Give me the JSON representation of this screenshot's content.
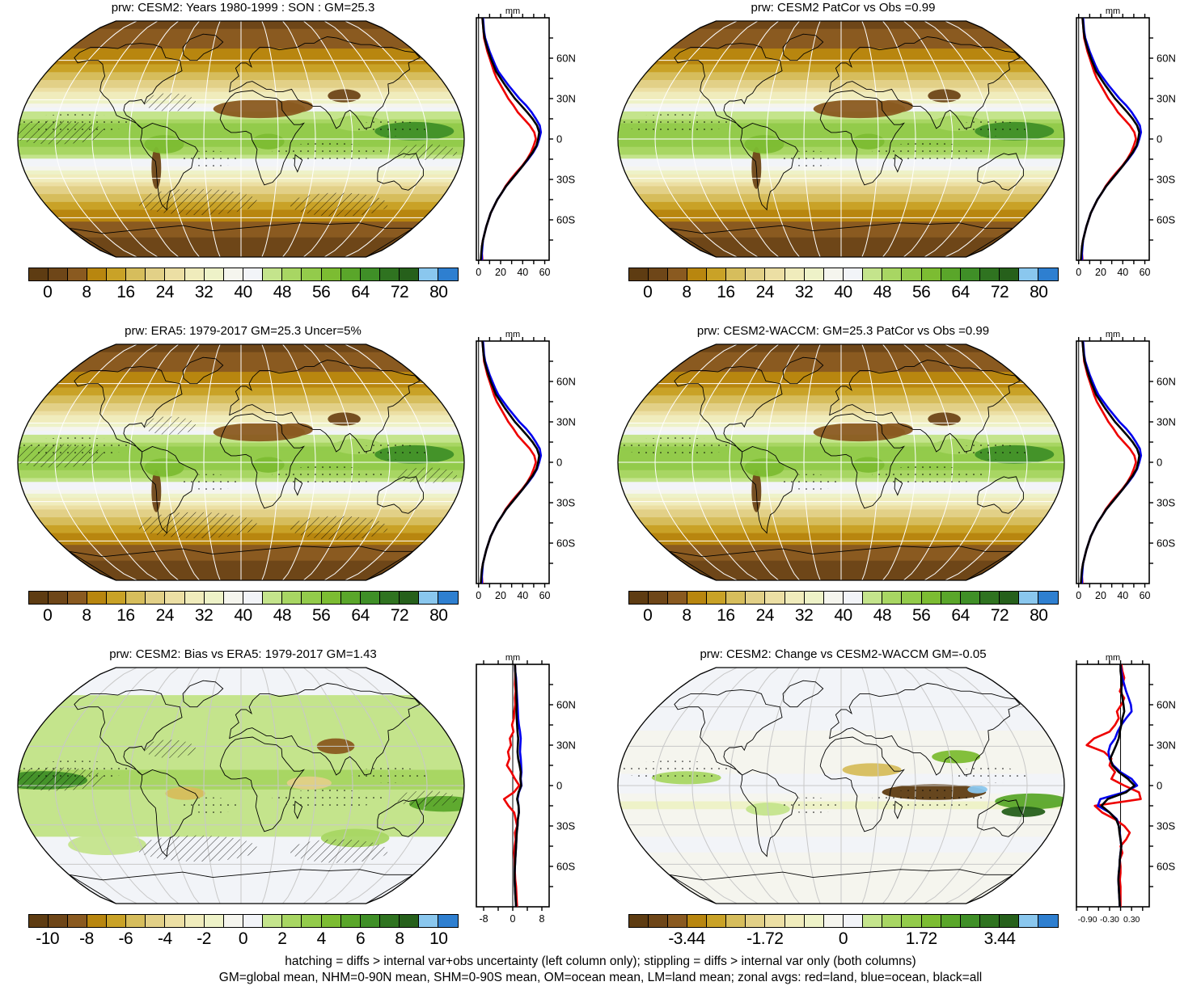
{
  "figure": {
    "caption_line1": "hatching = diffs > internal var+obs uncertainty (left column only); stippling = diffs > internal var only (both columns)",
    "caption_line2": "GM=global mean, NHM=0-90N mean, SHM=0-90S mean, OM=ocean mean, LM=land mean; zonal avgs: red=land, blue=ocean, black=all"
  },
  "colors": {
    "zonal_land_line": "#ee0000",
    "zonal_ocean_line": "#0000ee",
    "zonal_all_line": "#000000",
    "graticule_dark_maps": "#ffffff",
    "graticule_light_maps": "#c8c8c8",
    "colormap": [
      "#5e3c12",
      "#6e4618",
      "#8a5a20",
      "#b8860f",
      "#c9a227",
      "#d6bd5c",
      "#e2d087",
      "#ecdfa4",
      "#f0ecbc",
      "#eef2c8",
      "#f5f5ee",
      "#f2f4f8",
      "#c4e48c",
      "#a8d663",
      "#93cb4b",
      "#7cbc32",
      "#5aa62a",
      "#3f8f27",
      "#2f7320",
      "#26601b",
      "#8ac7ee",
      "#2e7fd0"
    ]
  },
  "chart_data": {
    "type": "heatmap",
    "description": "Six global maps of precipitable water (prw, mm) in Robinson-style projection, each with a zonal-mean side plot (red=land, blue=ocean, black=all) and a discrete colorbar.",
    "units": "mm",
    "lat_axis": {
      "minor_step": 15,
      "labels": [
        {
          "lat": 60,
          "t": "60N"
        },
        {
          "lat": 30,
          "t": "30N"
        },
        {
          "lat": 0,
          "t": "0"
        },
        {
          "lat": -30,
          "t": "30S"
        },
        {
          "lat": -60,
          "t": "60S"
        }
      ]
    },
    "shared_series": {
      "lats": [
        90,
        85,
        80,
        75,
        70,
        65,
        60,
        55,
        50,
        45,
        40,
        35,
        30,
        25,
        20,
        15,
        10,
        5,
        0,
        -5,
        -10,
        -15,
        -20,
        -25,
        -30,
        -35,
        -40,
        -45,
        -50,
        -55,
        -60,
        -65,
        -70,
        -75,
        -80,
        -85,
        -90
      ],
      "climo": {
        "all": [
          3.5,
          4,
          4.5,
          5.5,
          7,
          9,
          11,
          13.5,
          16,
          20,
          24,
          28.5,
          33,
          38.5,
          44,
          49,
          53,
          55,
          54,
          52.5,
          49,
          44.5,
          40,
          35,
          30,
          25,
          21,
          17,
          14,
          11,
          9,
          7,
          5.5,
          4,
          3,
          2.5,
          2
        ],
        "ocean": [
          4,
          4.5,
          5,
          6,
          8,
          10,
          12.5,
          15,
          18,
          22.5,
          27,
          32,
          37,
          43,
          48,
          52,
          55.5,
          56.5,
          55,
          53,
          49.5,
          45,
          40,
          35,
          30,
          25,
          21,
          17,
          14,
          11,
          9,
          7,
          5.5,
          4,
          3.5,
          3,
          3
        ],
        "land": [
          3.5,
          4,
          4.5,
          5,
          6.5,
          8,
          10,
          12,
          14,
          16.5,
          20,
          23.5,
          27,
          31.5,
          35.5,
          41,
          46.5,
          50.5,
          52,
          50,
          47.5,
          44,
          39.5,
          34,
          29,
          24.5,
          21,
          17,
          14,
          11,
          9,
          7,
          5.5,
          4,
          3,
          3,
          3.5
        ]
      },
      "bias": {
        "all": [
          0.6,
          0.7,
          0.8,
          0.9,
          1.0,
          1.0,
          1.1,
          1.0,
          1.1,
          1.2,
          1.3,
          1.5,
          1.4,
          1.3,
          1.5,
          1.9,
          2.2,
          2.1,
          2.3,
          1.6,
          1.2,
          1.6,
          1.7,
          1.4,
          1.3,
          1.1,
          1.0,
          0.9,
          0.8,
          0.7,
          0.6,
          0.5,
          0.5,
          0.6,
          0.7,
          0.8,
          0.9
        ],
        "ocean": [
          0.6,
          0.7,
          0.9,
          1.0,
          1.1,
          1.2,
          1.3,
          1.4,
          1.5,
          1.7,
          2.0,
          2.2,
          2.1,
          2.0,
          2.2,
          2.3,
          2.4,
          2.2,
          2.4,
          1.7,
          1.3,
          1.6,
          1.7,
          1.4,
          1.3,
          1.1,
          1.0,
          0.9,
          0.8,
          0.7,
          0.6,
          0.5,
          0.5,
          0.6,
          0.7,
          0.8,
          0.9
        ],
        "land": [
          0.6,
          0.7,
          0.7,
          0.6,
          0.8,
          0.6,
          0.7,
          0.4,
          0.3,
          -0.2,
          0.2,
          -0.8,
          -0.5,
          -1.3,
          -0.9,
          -1.6,
          -0.4,
          0.6,
          1.8,
          0.3,
          -2.4,
          -1.2,
          0.4,
          0.8,
          1.2,
          0.6,
          0.8,
          0.5,
          0.4,
          0.5,
          0.5,
          0.6,
          0.7,
          0.9,
          1.0,
          1.1,
          1.2
        ]
      },
      "change": {
        "all": [
          0,
          0,
          0.02,
          0.03,
          0.02,
          0.05,
          0.08,
          0.1,
          0.05,
          0.02,
          -0.02,
          -0.05,
          -0.12,
          -0.2,
          -0.28,
          -0.22,
          -0.05,
          0.2,
          0.38,
          0.15,
          -0.35,
          -0.52,
          -0.3,
          -0.12,
          -0.05,
          -0.03,
          0,
          0.02,
          0,
          -0.02,
          -0.03,
          -0.05,
          -0.06,
          -0.05,
          -0.04,
          -0.03,
          -0.02
        ],
        "ocean": [
          0,
          0.02,
          0.05,
          0.1,
          0.15,
          0.22,
          0.28,
          0.3,
          0.15,
          0.02,
          -0.08,
          -0.15,
          -0.28,
          -0.33,
          -0.3,
          -0.2,
          0,
          0.3,
          0.45,
          0.1,
          -0.55,
          -0.62,
          -0.3,
          -0.1,
          -0.05,
          -0.02,
          0,
          0.02,
          0,
          -0.02,
          -0.03,
          -0.05,
          -0.06,
          -0.05,
          -0.04,
          -0.03,
          -0.02
        ],
        "land": [
          0.02,
          0.05,
          0.1,
          0.05,
          -0.02,
          0.1,
          0.02,
          -0.1,
          -0.05,
          -0.15,
          -0.3,
          -0.72,
          -0.92,
          -0.45,
          -0.25,
          -0.3,
          -0.15,
          -0.25,
          0.1,
          0.5,
          0.55,
          -0.7,
          -0.5,
          -0.15,
          0.1,
          0.25,
          0.15,
          0,
          0.05,
          -0.02,
          0,
          0,
          -0.02,
          0,
          0,
          0,
          0
        ]
      }
    },
    "scales": {
      "climo": {
        "level_min": 0,
        "level_step": 4,
        "cb_ticks": [
          [
            "0",
            1
          ],
          [
            "8",
            3
          ],
          [
            "16",
            5
          ],
          [
            "24",
            7
          ],
          [
            "32",
            9
          ],
          [
            "40",
            11
          ],
          [
            "48",
            13
          ],
          [
            "56",
            15
          ],
          [
            "64",
            17
          ],
          [
            "72",
            19
          ],
          [
            "80",
            21
          ]
        ],
        "zonal": {
          "xlim": [
            -2,
            64
          ],
          "minor": 10,
          "labels": [
            [
              "0",
              0
            ],
            [
              "20",
              20
            ],
            [
              "40",
              40
            ],
            [
              "60",
              60
            ]
          ],
          "label_size": 12.5
        }
      },
      "bias": {
        "level_min": -10,
        "level_step": 1,
        "cb_ticks": [
          [
            "-10",
            1
          ],
          [
            "-8",
            3
          ],
          [
            "-6",
            5
          ],
          [
            "-4",
            7
          ],
          [
            "-2",
            9
          ],
          [
            "0",
            11
          ],
          [
            "2",
            13
          ],
          [
            "4",
            15
          ],
          [
            "6",
            17
          ],
          [
            "8",
            19
          ],
          [
            "10",
            21
          ]
        ],
        "zonal": {
          "xlim": [
            -10,
            10
          ],
          "minor": 4,
          "labels": [
            [
              "-8",
              -8
            ],
            [
              "0",
              0
            ],
            [
              "8",
              8
            ]
          ],
          "label_size": 12.5
        }
      },
      "change": {
        "level_min": -4.3,
        "level_step": 0.43,
        "cb_ticks": [
          [
            "-3.44",
            3
          ],
          [
            "-1.72",
            7
          ],
          [
            "0",
            11
          ],
          [
            "1.72",
            15
          ],
          [
            "3.44",
            19
          ]
        ],
        "zonal": {
          "xlim": [
            -1.2,
            0.78
          ],
          "minor": 0.3,
          "labels": [
            [
              "-0.90",
              -0.9
            ],
            [
              "-0.30",
              -0.3
            ],
            [
              "0.30",
              0.3
            ]
          ],
          "label_size": 10.5
        }
      }
    },
    "map_features": {
      "climo": [
        [
          15,
          23,
          38,
          7,
          "#8a5a20"
        ],
        [
          45,
          25,
          15,
          5,
          "#8a5a20"
        ],
        [
          88,
          33,
          14,
          5,
          "#6e4618"
        ],
        [
          -70,
          -22,
          4,
          16,
          "#6e4618"
        ],
        [
          140,
          6,
          32,
          7,
          "#3f8f27"
        ],
        [
          -62,
          -4,
          16,
          7,
          "#7cbc32"
        ],
        [
          22,
          -2,
          13,
          6,
          "#7cbc32"
        ],
        [
          95,
          12,
          20,
          6,
          "#a8d663"
        ]
      ],
      "bias": [
        [
          80,
          30,
          16,
          6,
          "#8a5a20"
        ],
        [
          -45,
          -6,
          16,
          5,
          "#d6bd5c"
        ],
        [
          55,
          2,
          18,
          5,
          "#e2d087"
        ],
        [
          -160,
          4,
          36,
          7,
          "#3f8f27"
        ],
        [
          165,
          -14,
          28,
          6,
          "#5aa62a"
        ],
        [
          -30,
          30,
          20,
          6,
          "#c4e48c"
        ],
        [
          100,
          -40,
          30,
          7,
          "#a8d663"
        ],
        [
          -120,
          -45,
          35,
          8,
          "#c4e48c"
        ]
      ],
      "change": [
        [
          75,
          -5,
          42,
          6,
          "#5e3c12"
        ],
        [
          25,
          12,
          24,
          5,
          "#d6bd5c"
        ],
        [
          155,
          -12,
          30,
          6,
          "#5aa62a"
        ],
        [
          -125,
          6,
          28,
          5,
          "#a8d663"
        ],
        [
          110,
          -3,
          8,
          3,
          "#8ac7ee"
        ],
        [
          150,
          -20,
          18,
          4,
          "#26601b"
        ],
        [
          95,
          22,
          20,
          5,
          "#7cbc32"
        ],
        [
          -60,
          -18,
          18,
          5,
          "#c4e48c"
        ]
      ]
    },
    "panels": [
      {
        "title": "prw: CESM2: Years 1980-1999 : SON : GM=25.3",
        "series": "climo",
        "scale": "climo",
        "overlays": [
          "hatching",
          "stippling"
        ],
        "graticule": "white",
        "features": "climo"
      },
      {
        "title": "prw: CESM2 PatCor vs Obs =0.99",
        "series": "climo",
        "scale": "climo",
        "overlays": [
          "stippling"
        ],
        "graticule": "white",
        "features": "climo"
      },
      {
        "title": "prw: ERA5: 1979-2017 GM=25.3 Uncer=5%",
        "series": "climo",
        "scale": "climo",
        "overlays": [
          "hatching",
          "stippling"
        ],
        "graticule": "white",
        "features": "climo"
      },
      {
        "title": "prw: CESM2-WACCM: GM=25.3 PatCor vs Obs =0.99",
        "series": "climo",
        "scale": "climo",
        "overlays": [
          "stippling"
        ],
        "graticule": "white",
        "features": "climo"
      },
      {
        "title": "prw: CESM2: Bias vs ERA5: 1979-2017  GM=1.43",
        "series": "bias",
        "scale": "bias",
        "overlays": [
          "hatching",
          "stippling"
        ],
        "graticule": "gray",
        "features": "bias"
      },
      {
        "title": "prw: CESM2: Change vs CESM2-WACCM GM=-0.05",
        "series": "change",
        "scale": "change",
        "overlays": [
          "stippling"
        ],
        "graticule": "gray",
        "features": "change"
      }
    ]
  }
}
